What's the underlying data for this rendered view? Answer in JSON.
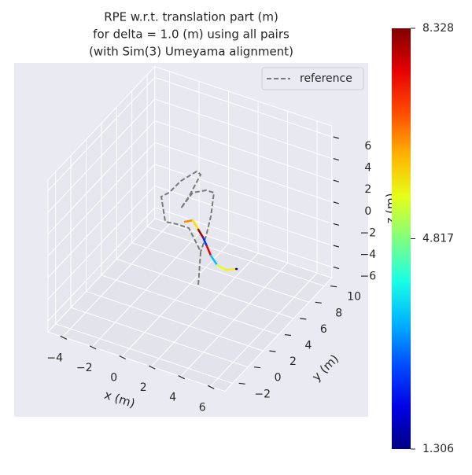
{
  "chart_data": {
    "type": "line3d",
    "title": [
      "RPE w.r.t. translation part (m)",
      "for delta = 1.0 (m) using all pairs",
      "(with Sim(3) Umeyama alignment)"
    ],
    "xlabel": "x (m)",
    "ylabel": "y (m)",
    "zlabel": "z (m)",
    "xlim": [
      -5,
      7
    ],
    "ylim": [
      -3,
      11
    ],
    "zlim": [
      -7,
      7
    ],
    "xticks": [
      {
        "value": -4,
        "label": "−4"
      },
      {
        "value": -2,
        "label": "−2"
      },
      0,
      2,
      4,
      6
    ],
    "yticks": [
      {
        "value": -2,
        "label": "−2"
      },
      0,
      2,
      4,
      6,
      8,
      10
    ],
    "zticks": [
      {
        "value": -6,
        "label": "−6"
      },
      {
        "value": -4,
        "label": "−4"
      },
      {
        "value": -2,
        "label": "−2"
      },
      0,
      2,
      4,
      6
    ],
    "grid": true,
    "legend": "upper right",
    "series": [
      {
        "name": "reference",
        "color": "#7a7a7a",
        "dashed": true,
        "x": [
          1.57,
          1.73,
          0.93,
          0.13,
          -0.67,
          -0.94,
          -0.41,
          0.39,
          1.46,
          1.73,
          0.93,
          0.39,
          1.19,
          2.1,
          2.63,
          2.42,
          2.1,
          1.73
        ],
        "y": [
          4,
          4,
          4,
          4,
          4,
          4,
          4,
          4,
          4,
          4,
          4,
          4,
          4,
          4,
          4,
          4,
          4,
          4
        ],
        "z": [
          -4.88,
          -1.76,
          0.04,
          0.04,
          -0.1,
          2.09,
          2.7,
          4.15,
          5.51,
          5.34,
          2.94,
          1.62,
          3.43,
          4.06,
          4.09,
          1.81,
          -0.14,
          -1.76
        ]
      },
      {
        "cmap": "jet",
        "x": [
          0.66,
          1.19,
          1.57,
          1.89,
          2.15,
          2.42,
          2.85,
          3.43,
          4.13
        ],
        "y": [
          4,
          4,
          4,
          4,
          4,
          4,
          4,
          4,
          4
        ],
        "z": [
          0.51,
          0.89,
          0.2,
          -0.38,
          -1.06,
          -1.81,
          -2.49,
          -2.65,
          -2.26
        ],
        "values": [
          6.5,
          5.9,
          8.1,
          2.5,
          7.6,
          3.5,
          5.5,
          5.8,
          2.0
        ]
      }
    ],
    "colorbar": {
      "clim": [
        1.306,
        8.328
      ],
      "ticks": [
        1.306,
        4.817,
        8.328
      ],
      "cmap": "jet"
    }
  }
}
